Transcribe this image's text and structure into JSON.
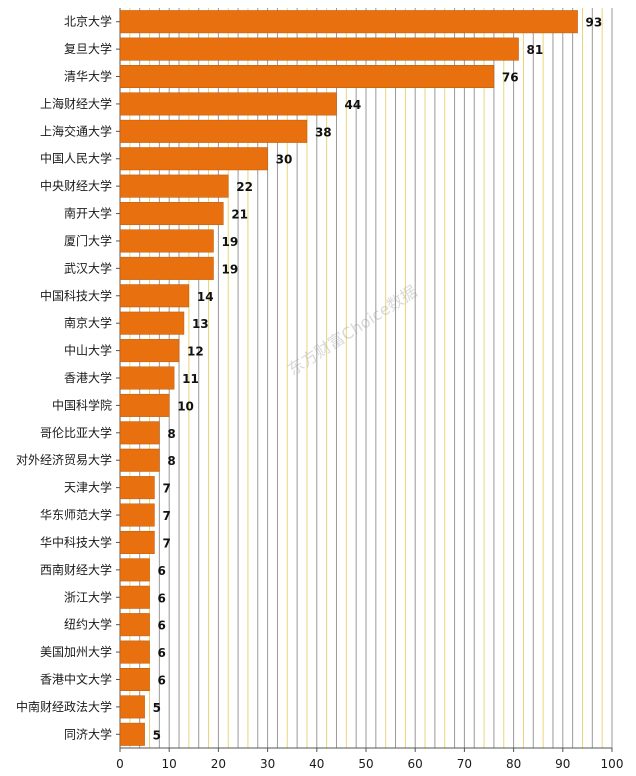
{
  "chart_data": {
    "type": "bar",
    "orientation": "horizontal",
    "categories": [
      "北京大学",
      "复旦大学",
      "清华大学",
      "上海财经大学",
      "上海交通大学",
      "中国人民大学",
      "中央财经大学",
      "南开大学",
      "厦门大学",
      "武汉大学",
      "中国科技大学",
      "南京大学",
      "中山大学",
      "香港大学",
      "中国科学院",
      "哥伦比亚大学",
      "对外经济贸易大学",
      "天津大学",
      "华东师范大学",
      "华中科技大学",
      "西南财经大学",
      "浙江大学",
      "纽约大学",
      "美国加州大学",
      "香港中文大学",
      "中南财经政法大学",
      "同济大学"
    ],
    "values": [
      93,
      81,
      76,
      44,
      38,
      30,
      22,
      21,
      19,
      19,
      14,
      13,
      12,
      11,
      10,
      8,
      8,
      7,
      7,
      7,
      6,
      6,
      6,
      6,
      6,
      5,
      5
    ],
    "xlim": [
      0,
      100
    ],
    "xticks": [
      0,
      10,
      20,
      30,
      40,
      50,
      60,
      70,
      80,
      90,
      100
    ],
    "grid": "vertical",
    "title": "",
    "xlabel": "",
    "ylabel": ""
  },
  "watermark": "东方财富Choice数据",
  "colors": {
    "bar": "#E8700F",
    "bar_edge": "#B85A08",
    "grid_a": "#E9D47A",
    "grid_b": "#9A9A9A",
    "axis": "#555555"
  }
}
